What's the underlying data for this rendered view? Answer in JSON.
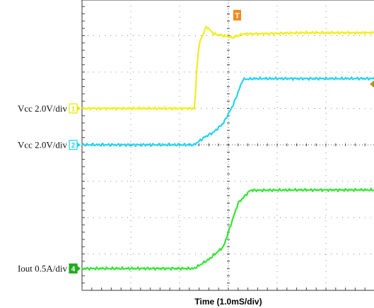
{
  "chart_data": {
    "type": "line",
    "title": "",
    "xlabel": "Time (1.0mS/div)",
    "ylabel": "",
    "grid": true,
    "x_divisions": 10,
    "y_divisions": 8,
    "channels": [
      {
        "id": "1",
        "label": "Vcc 2.0V/div",
        "color": "#f0ee1e",
        "marker_color": "#e6e600",
        "ground_div": 5.0,
        "points_div": [
          [
            0,
            5.0
          ],
          [
            2.25,
            5.0
          ],
          [
            2.3,
            5.0
          ],
          [
            2.32,
            5.3
          ],
          [
            2.35,
            6.0
          ],
          [
            2.38,
            6.5
          ],
          [
            2.42,
            6.85
          ],
          [
            2.5,
            7.1
          ],
          [
            2.55,
            7.25
          ],
          [
            2.7,
            7.05
          ],
          [
            2.9,
            7.0
          ],
          [
            3.1,
            6.95
          ],
          [
            3.3,
            7.05
          ],
          [
            3.6,
            7.05
          ],
          [
            4.5,
            7.08
          ],
          [
            6.0,
            7.08
          ],
          [
            7.1,
            7.08
          ]
        ]
      },
      {
        "id": "2",
        "label": "Vcc 2.0V/div",
        "color": "#27d3ee",
        "marker_color": "#27d3ee",
        "ground_div": 4.0,
        "points_div": [
          [
            0,
            4.0
          ],
          [
            2.3,
            4.0
          ],
          [
            2.5,
            4.2
          ],
          [
            2.7,
            4.35
          ],
          [
            2.9,
            4.6
          ],
          [
            3.1,
            5.1
          ],
          [
            3.3,
            5.8
          ],
          [
            3.55,
            5.82
          ],
          [
            4.5,
            5.82
          ],
          [
            6.0,
            5.82
          ],
          [
            7.1,
            5.82
          ]
        ]
      },
      {
        "id": "4",
        "label": "Iout 0.5A/div",
        "color": "#33e533",
        "marker_color": "#22aa22",
        "ground_div": 0.6,
        "points_div": [
          [
            0,
            0.6
          ],
          [
            2.3,
            0.6
          ],
          [
            2.6,
            0.85
          ],
          [
            2.9,
            1.2
          ],
          [
            3.2,
            2.4
          ],
          [
            3.45,
            2.75
          ],
          [
            3.6,
            2.75
          ],
          [
            4.5,
            2.76
          ],
          [
            6.0,
            2.76
          ],
          [
            7.1,
            2.76
          ]
        ]
      }
    ],
    "trigger_marker": "T"
  }
}
